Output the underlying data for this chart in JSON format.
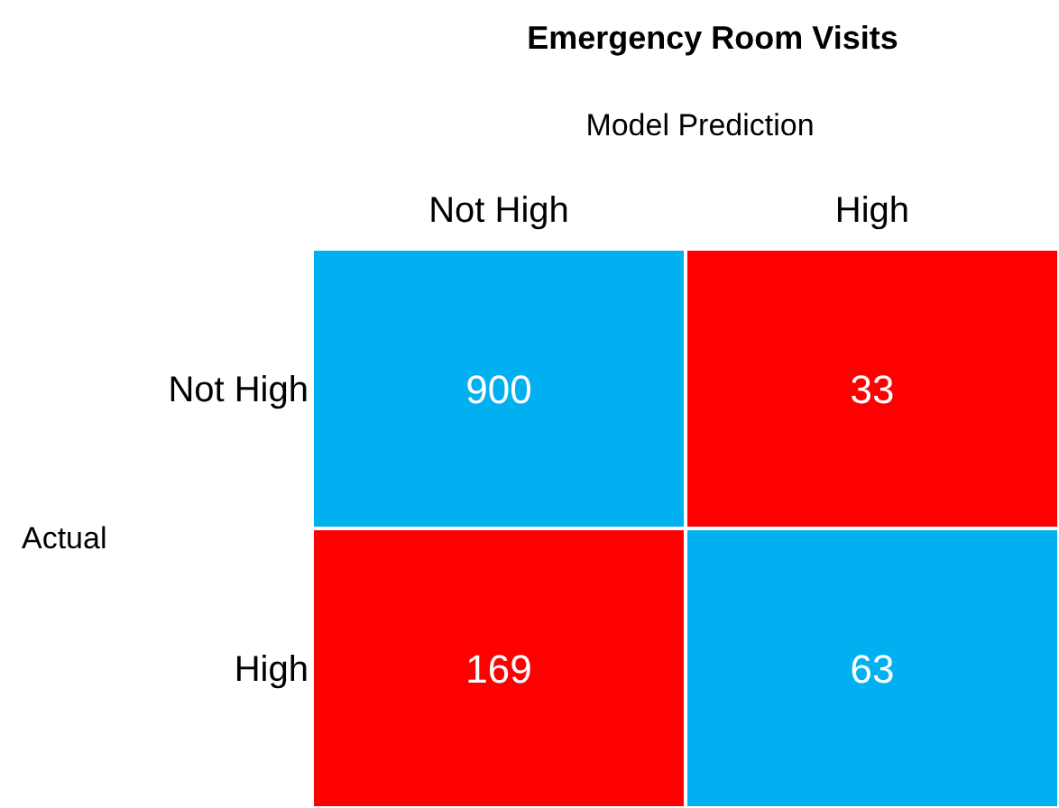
{
  "chart_data": {
    "type": "heatmap",
    "title": "Emergency Room Visits",
    "xlabel": "Model Prediction",
    "ylabel": "Actual",
    "categories": [
      "Not High",
      "High"
    ],
    "y_categories": [
      "Not High",
      "High"
    ],
    "cells": [
      [
        900,
        33
      ],
      [
        169,
        63
      ]
    ],
    "colors": [
      [
        "#00b0f0",
        "#ff0000"
      ],
      [
        "#ff0000",
        "#00b0f0"
      ]
    ],
    "data_labels": true
  }
}
